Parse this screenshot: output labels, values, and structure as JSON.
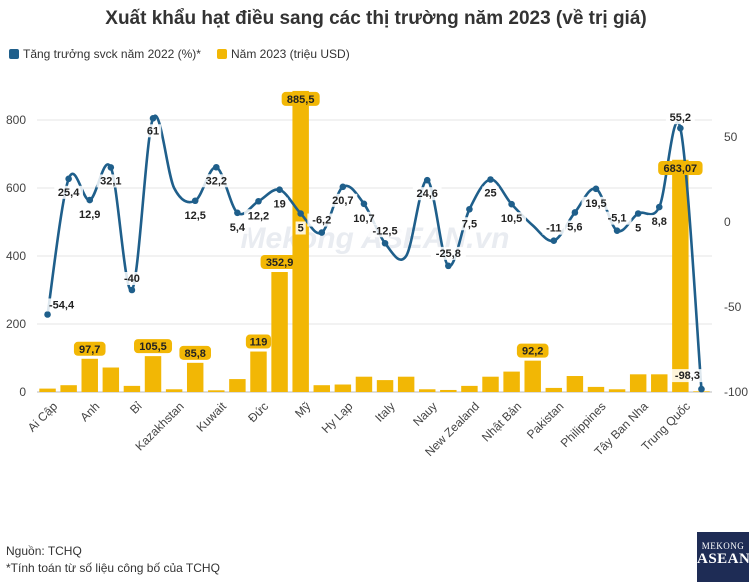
{
  "title": "Xuất khẩu hạt điều sang các thị trường năm 2023 (về trị giá)",
  "legend": {
    "growth": "Tăng trưởng svck năm 2022 (%)*",
    "value": "Năm 2023 (triệu USD)"
  },
  "colors": {
    "growth": "#1f5f8b",
    "value": "#f2b705",
    "label_bg": "#f2b705"
  },
  "watermark": "Mekong ASEAN.vn",
  "footer": {
    "source": "Nguồn: TCHQ",
    "note": "*Tính toán từ số liệu công bố của TCHQ"
  },
  "logo": {
    "line1": "MEKONG",
    "line2": "ASEAN"
  },
  "chart_data": {
    "type": "bar+line",
    "x_tick_labels": [
      "Ai Cập",
      "Anh",
      "Bỉ",
      "Kazakhstan",
      "Kuwait",
      "Đức",
      "Mỹ",
      "Hy Lạp",
      "Italy",
      "Nauy",
      "New Zealand",
      "Nhật Bản",
      "Pakistan",
      "Philippines",
      "Tây Ban Nha",
      "Trung Quốc"
    ],
    "left_axis": {
      "ticks": [
        0,
        200,
        400,
        600,
        800
      ],
      "ylim": [
        0,
        900
      ]
    },
    "right_axis": {
      "ticks": [
        -100,
        -50,
        0,
        50
      ],
      "ylim": [
        -100,
        50
      ]
    },
    "grid": true,
    "series": [
      {
        "name": "Năm 2023 (triệu USD)",
        "type": "bar",
        "axis": "left",
        "values": [
          10,
          20,
          97.7,
          72,
          18,
          105.5,
          8,
          85.8,
          5,
          38,
          119,
          352.9,
          885.5,
          20,
          22,
          45,
          35,
          45,
          8,
          6,
          18,
          45,
          60,
          92.2,
          12,
          47,
          15,
          8,
          52,
          52,
          683.07,
          2
        ],
        "labels": [
          {
            "index": 2,
            "text": "97,7"
          },
          {
            "index": 5,
            "text": "105,5"
          },
          {
            "index": 7,
            "text": "85,8"
          },
          {
            "index": 10,
            "text": "119"
          },
          {
            "index": 11,
            "text": "352,9"
          },
          {
            "index": 12,
            "text": "885,5"
          },
          {
            "index": 23,
            "text": "92,2"
          },
          {
            "index": 30,
            "text": "683,07"
          }
        ]
      },
      {
        "name": "Tăng trưởng svck năm 2022 (%)",
        "type": "line",
        "axis": "right",
        "values": [
          -54.4,
          25.4,
          12.9,
          32.1,
          -40,
          61,
          20,
          12.5,
          32.2,
          5.4,
          12.2,
          19,
          5,
          -6.2,
          20.7,
          10.7,
          -12.5,
          -20,
          24.6,
          -25.8,
          7.5,
          25,
          10.5,
          -2,
          -11,
          5.6,
          19.5,
          -5.1,
          5,
          8.8,
          55.2,
          -98.3
        ],
        "labels": [
          "-54,4",
          "25,4",
          "12,9",
          "32,1",
          "-40",
          "61",
          "",
          "12,5",
          "32,2",
          "5,4",
          "12,2",
          "19",
          "5",
          "-6,2",
          "20,7",
          "10,7",
          "-12,5",
          "",
          "24,6",
          "-25,8",
          "7,5",
          "25",
          "10,5",
          "",
          "-11",
          "5,6",
          "19,5",
          "-5,1",
          "5",
          "8,8",
          "55,2",
          "-98,3"
        ]
      }
    ]
  }
}
